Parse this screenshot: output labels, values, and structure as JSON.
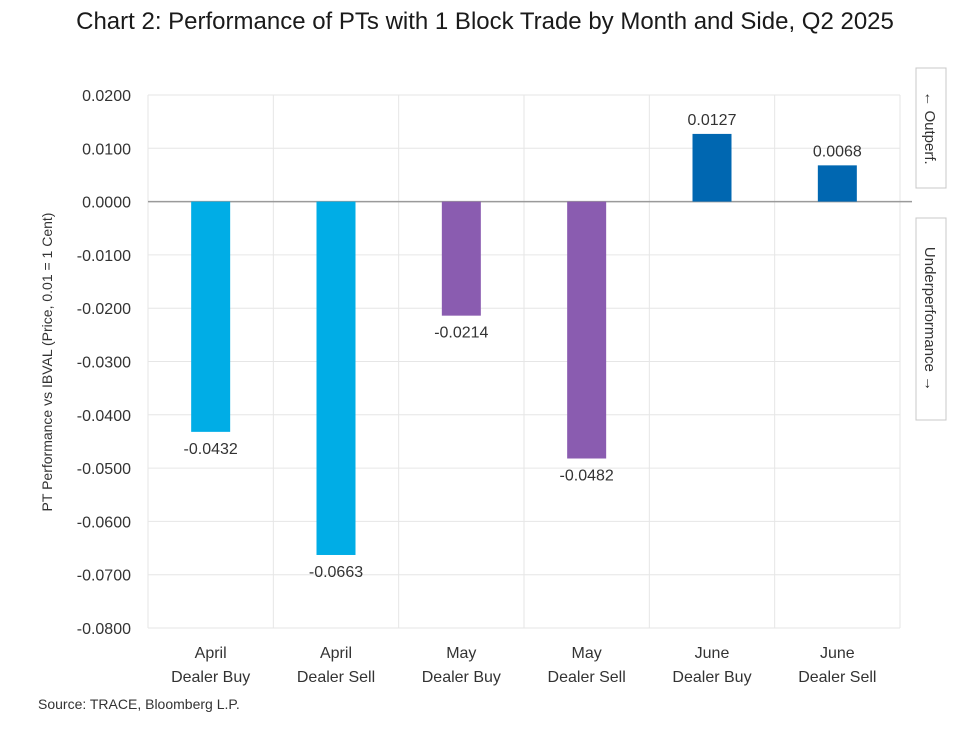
{
  "chart_data": {
    "type": "bar",
    "title": "Chart 2: Performance of PTs with 1 Block Trade by Month and Side, Q2 2025",
    "ylabel": "PT Performance vs IBVAL (Price, 0.01 = 1 Cent)",
    "xlabel": "",
    "ylim": [
      -0.08,
      0.02
    ],
    "yticks": [
      "0.0200",
      "0.0100",
      "0.0000",
      "-0.0100",
      "-0.0200",
      "-0.0300",
      "-0.0400",
      "-0.0500",
      "-0.0600",
      "-0.0700",
      "-0.0800"
    ],
    "ytick_values": [
      0.02,
      0.01,
      0.0,
      -0.01,
      -0.02,
      -0.03,
      -0.04,
      -0.05,
      -0.06,
      -0.07,
      -0.08
    ],
    "categories": [
      [
        "April",
        "Dealer Buy"
      ],
      [
        "April",
        "Dealer Sell"
      ],
      [
        "May",
        "Dealer Buy"
      ],
      [
        "May",
        "Dealer Sell"
      ],
      [
        "June",
        "Dealer Buy"
      ],
      [
        "June",
        "Dealer Sell"
      ]
    ],
    "values": [
      -0.0432,
      -0.0663,
      -0.0214,
      -0.0482,
      0.0127,
      0.0068
    ],
    "value_labels": [
      "-0.0432",
      "-0.0663",
      "-0.0214",
      "-0.0482",
      "0.0127",
      "0.0068"
    ],
    "colors": [
      "#00ADE6",
      "#00ADE6",
      "#8A5CB0",
      "#8A5CB0",
      "#0067B1",
      "#0067B1"
    ],
    "grid": true,
    "side_labels": {
      "outperformance": "← Outperf.",
      "underperformance": "Underperformance →"
    },
    "source": "Source: TRACE, Bloomberg L.P."
  }
}
